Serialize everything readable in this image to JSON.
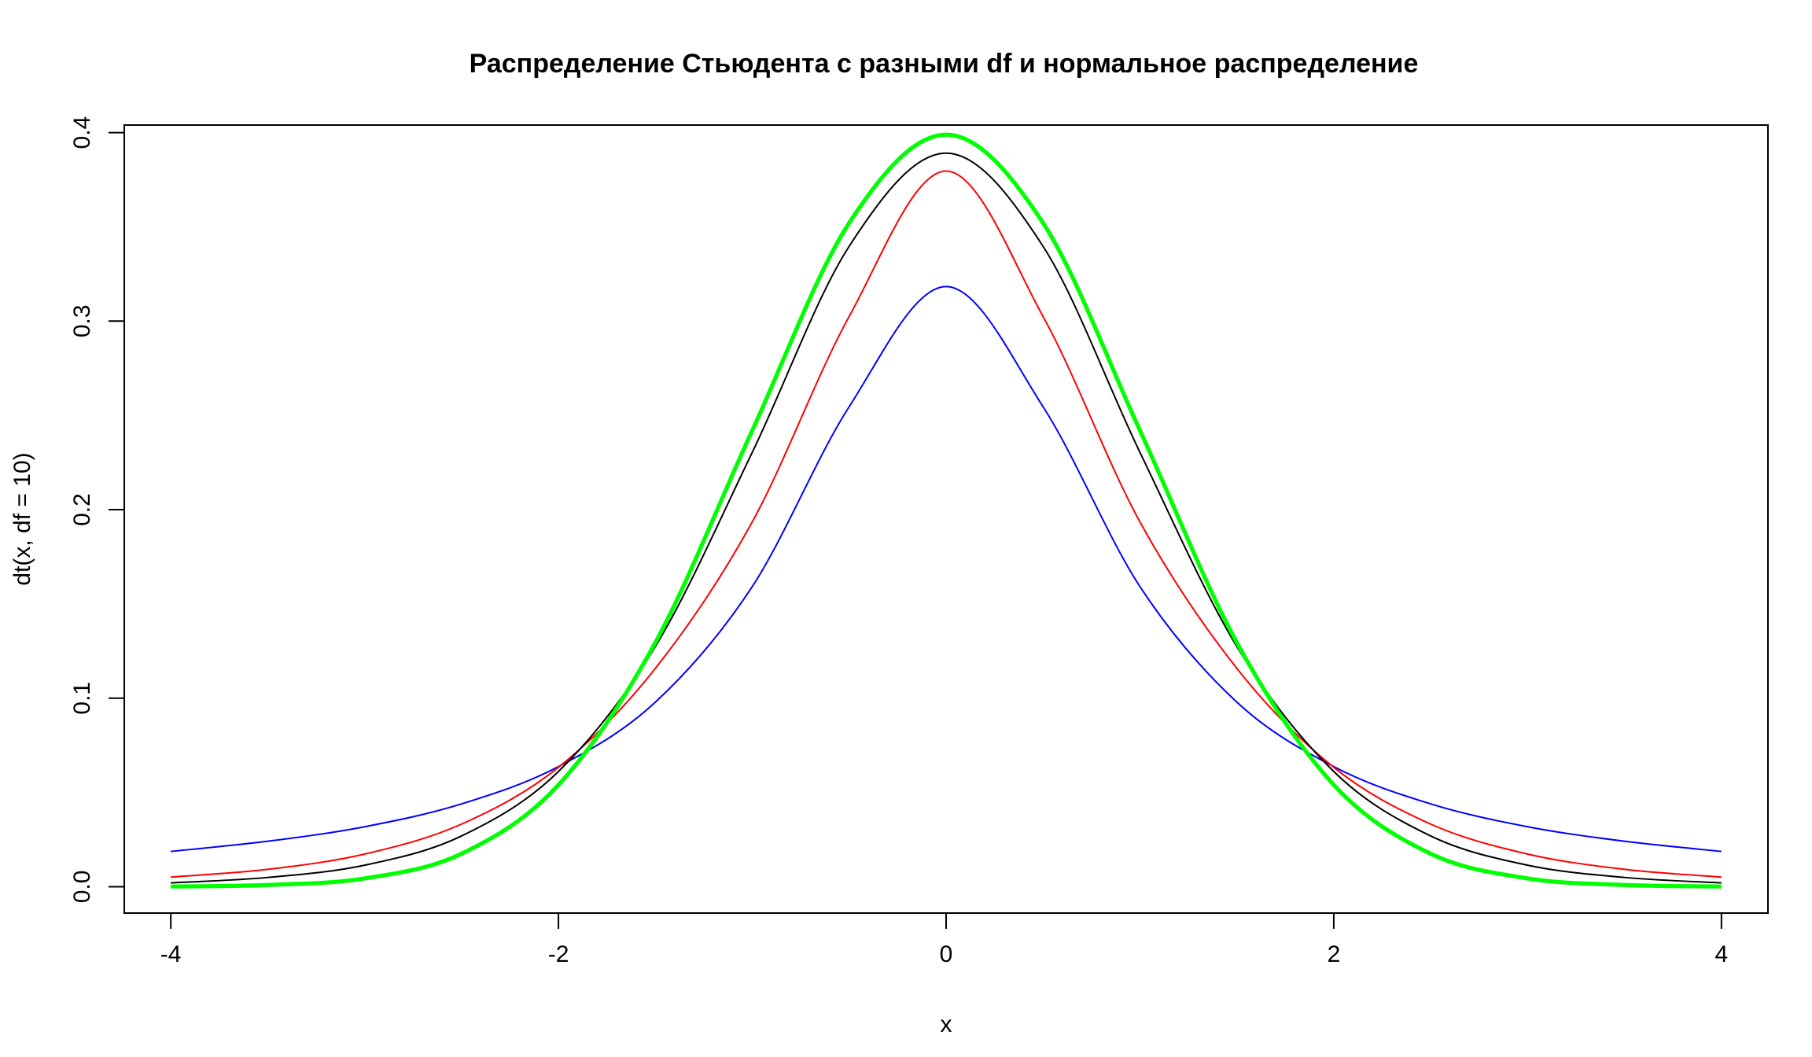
{
  "chart_data": {
    "type": "line",
    "title": "Распределение Стьюдента с разными df и нормальное распределение",
    "xlabel": "x",
    "ylabel": "dt(x, df = 10)",
    "xlim": [
      -4.24,
      4.24
    ],
    "ylim": [
      -0.014,
      0.404
    ],
    "x_ticks": [
      -4,
      -2,
      0,
      2,
      4
    ],
    "x_tick_labels": [
      "-4",
      "-2",
      "0",
      "2",
      "4"
    ],
    "y_ticks": [
      0.0,
      0.1,
      0.2,
      0.3,
      0.4
    ],
    "y_tick_labels": [
      "0.0",
      "0.1",
      "0.2",
      "0.3",
      "0.4"
    ],
    "grid": false,
    "legend": "none",
    "x": [
      -4,
      -3.5,
      -3,
      -2.5,
      -2,
      -1.5,
      -1,
      -0.5,
      0,
      0.5,
      1,
      1.5,
      2,
      2.5,
      3,
      3.5,
      4
    ],
    "series": [
      {
        "color": "#0000ff",
        "line_width": 1,
        "values": [
          0.0187,
          0.0241,
          0.0318,
          0.0439,
          0.0637,
          0.0979,
          0.1592,
          0.2546,
          0.3183,
          0.2546,
          0.1592,
          0.0979,
          0.0637,
          0.0439,
          0.0318,
          0.0241,
          0.0187
        ]
      },
      {
        "color": "#ff0000",
        "line_width": 1,
        "values": [
          0.0051,
          0.0092,
          0.0173,
          0.0332,
          0.0633,
          0.1158,
          0.1935,
          0.3025,
          0.3796,
          0.3025,
          0.1935,
          0.1158,
          0.0633,
          0.0332,
          0.0173,
          0.0092,
          0.0051
        ]
      },
      {
        "color": "#000000",
        "line_width": 1,
        "values": [
          0.002,
          0.0049,
          0.0114,
          0.0269,
          0.0611,
          0.1274,
          0.2304,
          0.3397,
          0.3891,
          0.3397,
          0.2304,
          0.1274,
          0.0611,
          0.0269,
          0.0114,
          0.0049,
          0.002
        ]
      },
      {
        "color": "#00ff00",
        "line_width": 2.6,
        "values": [
          0.0001,
          0.0009,
          0.0044,
          0.0175,
          0.054,
          0.1295,
          0.242,
          0.3521,
          0.3989,
          0.3521,
          0.242,
          0.1295,
          0.054,
          0.0175,
          0.0044,
          0.0009,
          0.0001
        ]
      }
    ]
  }
}
